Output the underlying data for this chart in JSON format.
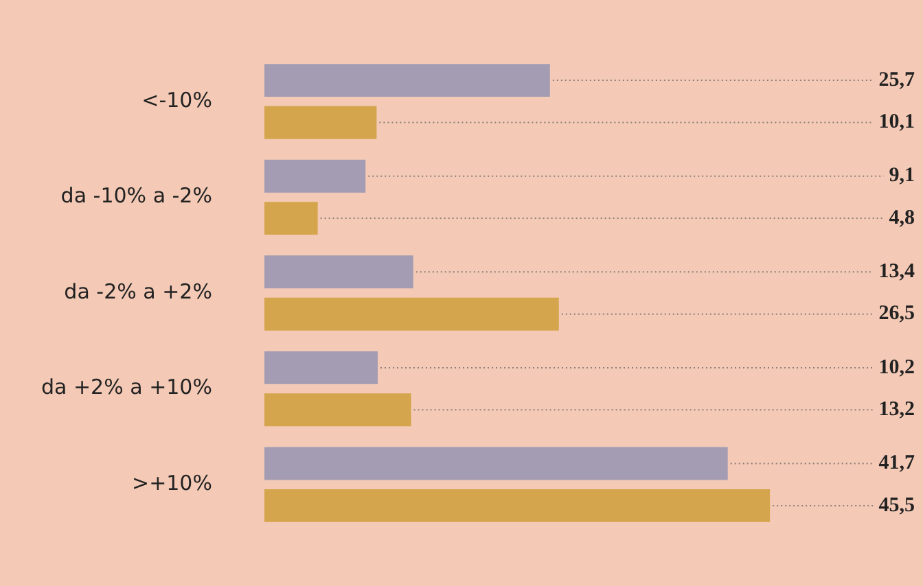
{
  "chart_data": {
    "type": "bar",
    "orientation": "horizontal",
    "categories": [
      "<-10%",
      "da -10% a -2%",
      "da -2% a +2%",
      "da +2% a +10%",
      ">+10%"
    ],
    "series": [
      {
        "color": "#a39cb3",
        "values": [
          25.7,
          9.1,
          13.4,
          10.2,
          41.7
        ],
        "value_labels": [
          "25,7",
          "9,1",
          "13,4",
          "10,2",
          "41,7"
        ]
      },
      {
        "color": "#d4a54c",
        "values": [
          10.1,
          4.8,
          26.5,
          13.2,
          45.5
        ],
        "value_labels": [
          "10,1",
          "4,8",
          "26,5",
          "13,2",
          "45,5"
        ]
      }
    ],
    "tick_labels": "y",
    "legend": false
  }
}
